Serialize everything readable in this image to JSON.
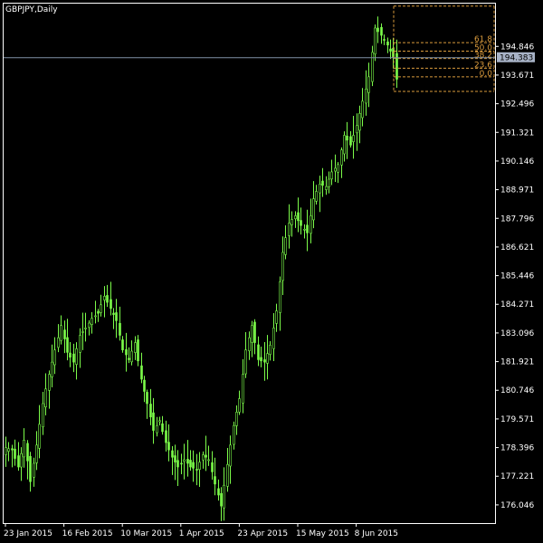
{
  "chart_title": "GBPJPY,Daily",
  "colors": {
    "background": "#000000",
    "frame": "#ffffff",
    "candles": "#7cfc4a",
    "bid_line": "#7f8fa6",
    "price_tag_bg": "#a8b3c7",
    "fibonacci": "#d99a3c"
  },
  "chart_data": {
    "type": "candlestick",
    "symbol": "GBPJPY",
    "timeframe": "Daily",
    "title": "GBPJPY,Daily",
    "ylim": [
      175.3,
      196.6
    ],
    "y_ticks": [
      "194.846",
      "193.671",
      "192.496",
      "191.321",
      "190.146",
      "188.971",
      "187.796",
      "186.621",
      "185.446",
      "184.271",
      "183.096",
      "181.921",
      "180.746",
      "179.571",
      "178.396",
      "177.221",
      "176.046"
    ],
    "x_ticks": [
      "23 Jan 2015",
      "16 Feb 2015",
      "10 Mar 2015",
      "1 Apr 2015",
      "23 Apr 2015",
      "15 May 2015",
      "8 Jun 2015"
    ],
    "current_price": "194.383",
    "close_path": [
      [
        0,
        178.4
      ],
      [
        2,
        178.3
      ],
      [
        4,
        177.6
      ],
      [
        6,
        178.7
      ],
      [
        8,
        177.0
      ],
      [
        10,
        178.5
      ],
      [
        12,
        180.2
      ],
      [
        14,
        181.4
      ],
      [
        16,
        182.4
      ],
      [
        18,
        183.4
      ],
      [
        20,
        182.3
      ],
      [
        22,
        181.9
      ],
      [
        24,
        183.0
      ],
      [
        26,
        183.3
      ],
      [
        28,
        183.7
      ],
      [
        30,
        183.9
      ],
      [
        32,
        184.6
      ],
      [
        34,
        184.1
      ],
      [
        36,
        183.6
      ],
      [
        38,
        182.4
      ],
      [
        40,
        182.0
      ],
      [
        42,
        182.7
      ],
      [
        44,
        181.2
      ],
      [
        46,
        180.2
      ],
      [
        48,
        179.1
      ],
      [
        50,
        179.5
      ],
      [
        52,
        178.6
      ],
      [
        54,
        178.0
      ],
      [
        56,
        177.6
      ],
      [
        58,
        177.9
      ],
      [
        60,
        177.6
      ],
      [
        62,
        177.5
      ],
      [
        64,
        178.1
      ],
      [
        66,
        177.9
      ],
      [
        68,
        176.9
      ],
      [
        70,
        176.0
      ],
      [
        72,
        177.7
      ],
      [
        74,
        179.3
      ],
      [
        76,
        180.4
      ],
      [
        78,
        182.4
      ],
      [
        80,
        183.4
      ],
      [
        82,
        182.0
      ],
      [
        84,
        181.9
      ],
      [
        86,
        182.6
      ],
      [
        88,
        184.0
      ],
      [
        90,
        186.4
      ],
      [
        92,
        187.6
      ],
      [
        94,
        187.9
      ],
      [
        96,
        187.5
      ],
      [
        98,
        187.2
      ],
      [
        100,
        188.6
      ],
      [
        102,
        189.2
      ],
      [
        104,
        189.1
      ],
      [
        106,
        189.7
      ],
      [
        108,
        190.0
      ],
      [
        110,
        191.2
      ],
      [
        112,
        190.8
      ],
      [
        114,
        191.6
      ],
      [
        116,
        192.6
      ],
      [
        118,
        193.6
      ],
      [
        120,
        195.6
      ],
      [
        122,
        195.3
      ],
      [
        124,
        194.9
      ],
      [
        126,
        194.4
      ],
      [
        127,
        193.5
      ]
    ],
    "fibonacci_levels": [
      {
        "label": "61.8",
        "price": 195.0
      },
      {
        "label": "50.0",
        "price": 194.65
      },
      {
        "label": "38.2",
        "price": 194.35
      },
      {
        "label": "23.6",
        "price": 193.95
      },
      {
        "label": "0.0",
        "price": 193.6
      }
    ],
    "fibonacci_top": 196.5
  }
}
